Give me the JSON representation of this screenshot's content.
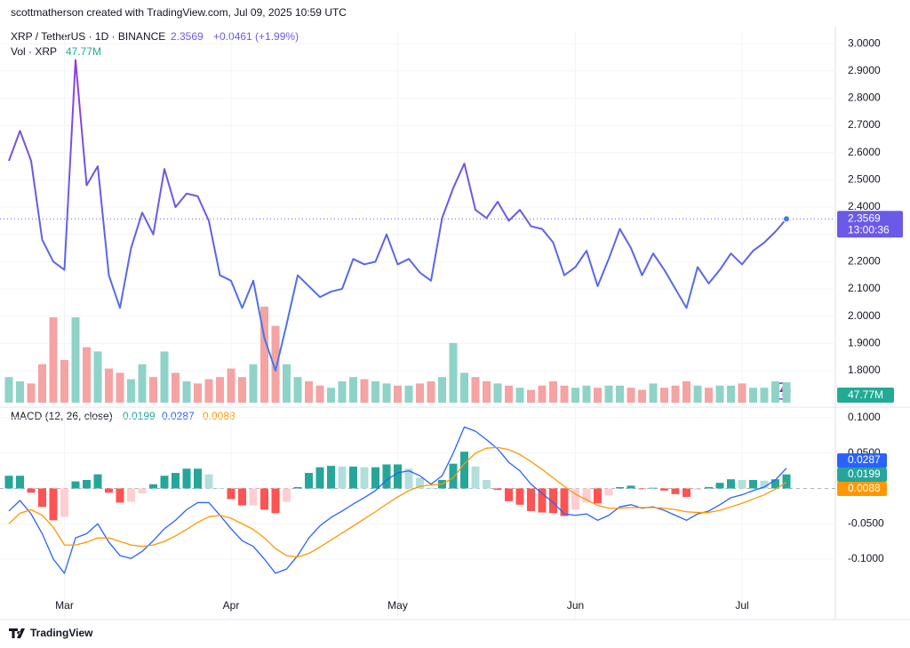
{
  "chart_data": {
    "type": "line",
    "attribution": "scottmatherson created with TradingView.com, Jul 09, 2025 10:59 UTC",
    "title": "XRP / TetherUS · 1D · BINANCE",
    "change_label": "+0.0461 (+1.99%)",
    "countdown": "13:00:36",
    "brand": "TradingView",
    "categories": [
      null,
      null,
      null,
      null,
      null,
      "Mar",
      null,
      null,
      null,
      null,
      null,
      null,
      null,
      null,
      null,
      null,
      null,
      null,
      null,
      null,
      "Apr",
      null,
      null,
      null,
      null,
      null,
      null,
      null,
      null,
      null,
      null,
      null,
      null,
      null,
      null,
      "May",
      null,
      null,
      null,
      null,
      null,
      null,
      null,
      null,
      null,
      null,
      null,
      null,
      null,
      null,
      null,
      "Jun",
      null,
      null,
      null,
      null,
      null,
      null,
      null,
      null,
      null,
      null,
      null,
      null,
      null,
      null,
      "Jul",
      null,
      null,
      null,
      null
    ],
    "series": [
      {
        "name": "XRP",
        "gradient": [
          "#8e3fe0",
          "#3d7df0"
        ],
        "label_color": "#6a5ae8",
        "values": [
          2.57,
          2.68,
          2.57,
          2.28,
          2.2,
          2.17,
          2.94,
          2.48,
          2.55,
          2.15,
          2.03,
          2.25,
          2.38,
          2.3,
          2.54,
          2.4,
          2.45,
          2.44,
          2.35,
          2.15,
          2.13,
          2.03,
          2.13,
          1.92,
          1.8,
          1.97,
          2.15,
          2.11,
          2.07,
          2.09,
          2.1,
          2.21,
          2.19,
          2.2,
          2.3,
          2.19,
          2.21,
          2.16,
          2.13,
          2.36,
          2.47,
          2.56,
          2.39,
          2.36,
          2.42,
          2.35,
          2.39,
          2.33,
          2.32,
          2.27,
          2.15,
          2.18,
          2.24,
          2.11,
          2.21,
          2.32,
          2.25,
          2.15,
          2.23,
          2.17,
          2.1,
          2.03,
          2.18,
          2.12,
          2.17,
          2.23,
          2.19,
          2.24,
          2.27,
          2.31,
          2.3569
        ]
      }
    ],
    "ylim": [
      1.676,
      3.046
    ],
    "yticks": [
      {
        "value": 1.8,
        "label": "1.8000"
      },
      {
        "value": 1.9,
        "label": "1.9000"
      },
      {
        "value": 2.0,
        "label": "2.0000"
      },
      {
        "value": 2.1,
        "label": "2.1000"
      },
      {
        "value": 2.2,
        "label": "2.2000"
      },
      {
        "value": 2.3,
        "label": "2.3000"
      },
      {
        "value": 2.4,
        "label": "2.4000"
      },
      {
        "value": 2.5,
        "label": "2.5000"
      },
      {
        "value": 2.6,
        "label": "2.6000"
      },
      {
        "value": 2.7,
        "label": "2.7000"
      },
      {
        "value": 2.8,
        "label": "2.8000"
      },
      {
        "value": 2.9,
        "label": "2.9000"
      },
      {
        "value": 3.0,
        "label": "3.0000"
      }
    ],
    "grid": true,
    "volume": {
      "name": "Vol · XRP",
      "last_value_label": "47.77M",
      "up_color": "#8fd3c8",
      "down_color": "#f5a3a3",
      "label_color": "#22ab94",
      "values": [
        60,
        50,
        45,
        90,
        200,
        100,
        200,
        130,
        120,
        80,
        70,
        55,
        90,
        60,
        120,
        70,
        50,
        45,
        55,
        60,
        80,
        60,
        90,
        225,
        180,
        90,
        60,
        50,
        40,
        35,
        50,
        60,
        55,
        50,
        45,
        40,
        40,
        45,
        50,
        60,
        140,
        70,
        60,
        50,
        45,
        40,
        35,
        30,
        40,
        50,
        40,
        35,
        40,
        35,
        40,
        40,
        35,
        30,
        45,
        35,
        40,
        50,
        40,
        35,
        40,
        40,
        45,
        35,
        35,
        50,
        47.77
      ]
    },
    "macd": {
      "name": "MACD (12, 26, close)",
      "ylim": [
        -0.183,
        0.1126
      ],
      "yticks": [
        {
          "value": 0.1,
          "label": "0.1000"
        },
        {
          "value": 0.05,
          "label": "0.0500"
        },
        {
          "value": -0.05,
          "label": "-0.0500"
        },
        {
          "value": -0.1,
          "label": "-0.1000"
        }
      ],
      "histogram_colors": [
        "#26a69a",
        "#b2dfdb",
        "#ffcdd2",
        "#ff5252"
      ],
      "histogram": [
        0.018,
        0.018,
        -0.006,
        -0.026,
        -0.045,
        -0.04,
        0.01,
        0.012,
        0.02,
        -0.006,
        -0.02,
        -0.019,
        -0.007,
        0.006,
        0.018,
        0.022,
        0.028,
        0.028,
        0.02,
        0,
        -0.015,
        -0.024,
        -0.024,
        -0.03,
        -0.035,
        -0.019,
        0.002,
        0.022,
        0.03,
        0.032,
        0.031,
        0.031,
        0.03,
        0.03,
        0.034,
        0.034,
        0.028,
        0.015,
        0.001,
        0.012,
        0.035,
        0.052,
        0.031,
        0.012,
        -0.002,
        -0.018,
        -0.023,
        -0.032,
        -0.034,
        -0.035,
        -0.039,
        -0.03,
        -0.02,
        -0.021,
        -0.01,
        0.002,
        0.004,
        -0.001,
        0.001,
        -0.003,
        -0.008,
        -0.012,
        -0.002,
        0.002,
        0.008,
        0.013,
        0.012,
        0.012,
        0.011,
        0.013,
        0.0199
      ],
      "series": [
        {
          "color": "#2962ff",
          "values": [
            -0.032,
            -0.017,
            -0.036,
            -0.064,
            -0.1,
            -0.12,
            -0.07,
            -0.064,
            -0.05,
            -0.076,
            -0.095,
            -0.099,
            -0.089,
            -0.074,
            -0.057,
            -0.045,
            -0.03,
            -0.02,
            -0.02,
            -0.038,
            -0.057,
            -0.074,
            -0.082,
            -0.1,
            -0.12,
            -0.114,
            -0.095,
            -0.07,
            -0.053,
            -0.041,
            -0.032,
            -0.022,
            -0.013,
            -0.003,
            0.012,
            0.022,
            0.025,
            0.018,
            0.006,
            0.018,
            0.05,
            0.087,
            0.081,
            0.069,
            0.056,
            0.037,
            0.025,
            0.006,
            -0.007,
            -0.02,
            -0.036,
            -0.038,
            -0.036,
            -0.045,
            -0.038,
            -0.026,
            -0.023,
            -0.028,
            -0.026,
            -0.031,
            -0.038,
            -0.045,
            -0.036,
            -0.032,
            -0.023,
            -0.013,
            -0.009,
            -0.003,
            0.002,
            0.012,
            0.0287
          ]
        },
        {
          "color": "#ff9800",
          "values": [
            -0.05,
            -0.035,
            -0.03,
            -0.038,
            -0.055,
            -0.08,
            -0.08,
            -0.076,
            -0.07,
            -0.07,
            -0.075,
            -0.08,
            -0.082,
            -0.08,
            -0.075,
            -0.067,
            -0.058,
            -0.048,
            -0.04,
            -0.038,
            -0.042,
            -0.05,
            -0.058,
            -0.07,
            -0.085,
            -0.095,
            -0.097,
            -0.092,
            -0.083,
            -0.073,
            -0.063,
            -0.053,
            -0.043,
            -0.033,
            -0.022,
            -0.012,
            -0.003,
            0.003,
            0.005,
            0.006,
            0.015,
            0.035,
            0.05,
            0.057,
            0.058,
            0.055,
            0.048,
            0.038,
            0.027,
            0.015,
            0.003,
            -0.008,
            -0.016,
            -0.024,
            -0.028,
            -0.028,
            -0.027,
            -0.027,
            -0.027,
            -0.028,
            -0.03,
            -0.033,
            -0.034,
            -0.034,
            -0.031,
            -0.026,
            -0.021,
            -0.015,
            -0.009,
            -0.001,
            0.0088
          ]
        }
      ]
    }
  }
}
